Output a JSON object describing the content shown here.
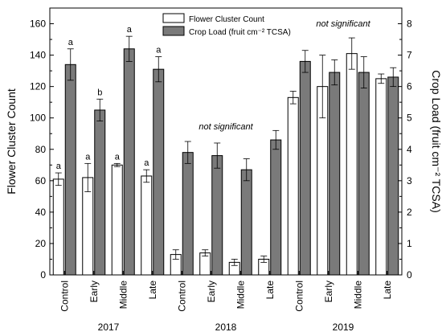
{
  "chart_data": {
    "type": "bar",
    "categories": [
      "Control",
      "Early",
      "Middle",
      "Late",
      "Control",
      "Early",
      "Middle",
      "Late",
      "Control",
      "Early",
      "Middle",
      "Late"
    ],
    "groups": [
      {
        "label": "2017",
        "start": 0,
        "end": 3
      },
      {
        "label": "2018",
        "start": 4,
        "end": 7
      },
      {
        "label": "2019",
        "start": 8,
        "end": 11
      }
    ],
    "series": [
      {
        "name": "Flower Cluster Count",
        "axis": "left",
        "color": "#ffffff",
        "values": [
          61,
          62,
          70,
          63,
          13,
          14,
          8,
          10,
          113,
          120,
          141,
          125
        ],
        "errors": [
          4,
          9,
          1,
          4,
          3,
          2,
          2,
          2,
          4,
          20,
          10,
          3
        ],
        "letters": [
          "a",
          "a",
          "a",
          "a",
          "",
          "",
          "",
          "",
          "",
          "",
          "",
          ""
        ]
      },
      {
        "name": "Crop Load (fruit cm⁻² TCSA)",
        "axis": "right",
        "color": "#7a7a7a",
        "values": [
          6.7,
          5.25,
          7.2,
          6.55,
          3.9,
          3.8,
          3.35,
          4.3,
          6.8,
          6.45,
          6.45,
          6.3
        ],
        "errors": [
          0.5,
          0.35,
          0.4,
          0.4,
          0.35,
          0.4,
          0.35,
          0.3,
          0.35,
          0.4,
          0.5,
          0.3
        ],
        "letters": [
          "a",
          "b",
          "a",
          "a",
          "",
          "",
          "",
          "",
          "",
          "",
          "",
          ""
        ]
      }
    ],
    "ylabel": "Flower Cluster Count",
    "y2label": "Crop Load (fruit cm⁻² TCSA)",
    "ylim": [
      0,
      170
    ],
    "yticks": [
      0,
      20,
      40,
      60,
      80,
      100,
      120,
      140,
      160
    ],
    "y2lim": [
      0,
      8.5
    ],
    "y2ticks": [
      0,
      1,
      2,
      3,
      4,
      5,
      6,
      7,
      8
    ],
    "annotations": [
      {
        "text": "not significant",
        "group": 1
      },
      {
        "text": "not significant",
        "group": 2
      }
    ],
    "legend": "top-center",
    "grid": false
  }
}
